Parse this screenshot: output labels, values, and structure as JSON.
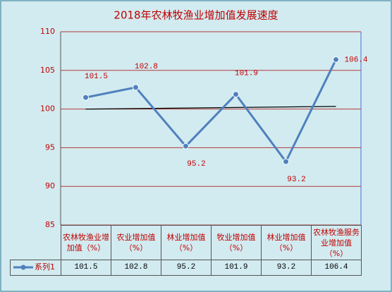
{
  "chart_data": {
    "type": "line",
    "title": "2018年农林牧渔业增加值发展速度",
    "categories": [
      "农林牧渔业增加值（%）",
      "农业增加值（%）",
      "林业增加值（%）",
      "牧业增加值（%）",
      "林业增加值（%）",
      "农林牧渔服务业增加值（%）"
    ],
    "series": [
      {
        "name": "系列1",
        "color": "#4f81bd",
        "values": [
          101.5,
          102.8,
          95.2,
          101.9,
          93.2,
          106.4
        ]
      }
    ],
    "ylim": [
      85,
      110
    ],
    "yticks": [
      85,
      90,
      95,
      100,
      105,
      110
    ],
    "grid": true,
    "trendline": "linear",
    "data_table": true
  }
}
